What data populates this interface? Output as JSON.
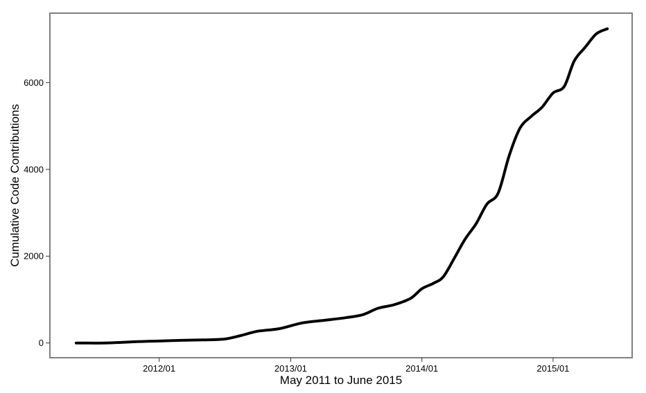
{
  "chart_data": {
    "type": "line",
    "title": "",
    "xlabel": "May 2011 to June 2015",
    "ylabel": "Cumulative Code Contributions",
    "xlim": [
      "2011-03-03",
      "2015-08-09"
    ],
    "ylim": [
      -340,
      7600
    ],
    "x_ticks": [
      {
        "date": "2012-01-01",
        "label": "2012/01"
      },
      {
        "date": "2013-01-01",
        "label": "2013/01"
      },
      {
        "date": "2014-01-01",
        "label": "2014/01"
      },
      {
        "date": "2015-01-01",
        "label": "2015/01"
      }
    ],
    "y_ticks": [
      {
        "value": 0,
        "label": "0"
      },
      {
        "value": 2000,
        "label": "2000"
      },
      {
        "value": 4000,
        "label": "4000"
      },
      {
        "value": 6000,
        "label": "6000"
      }
    ],
    "grid": false,
    "legend": "none",
    "colors": {
      "line": "#000000",
      "frame": "#7f7f7f"
    },
    "series": [
      {
        "x": [
          "2011-05-15",
          "2011-08-01",
          "2011-11-01",
          "2012-01-01",
          "2012-03-01",
          "2012-05-01",
          "2012-07-01",
          "2012-08-15",
          "2012-10-01",
          "2012-12-01",
          "2013-02-01",
          "2013-04-01",
          "2013-06-01",
          "2013-07-20",
          "2013-09-01",
          "2013-10-15",
          "2013-12-01",
          "2014-01-01",
          "2014-02-01",
          "2014-03-01",
          "2014-04-01",
          "2014-05-01",
          "2014-06-01",
          "2014-07-01",
          "2014-08-01",
          "2014-09-01",
          "2014-10-01",
          "2014-11-01",
          "2014-12-01",
          "2015-01-01",
          "2015-02-01",
          "2015-03-01",
          "2015-04-01",
          "2015-05-01",
          "2015-06-01"
        ],
        "y": [
          0,
          0,
          30,
          45,
          60,
          70,
          90,
          170,
          270,
          330,
          460,
          520,
          580,
          650,
          800,
          880,
          1030,
          1250,
          1370,
          1520,
          1950,
          2390,
          2750,
          3200,
          3450,
          4320,
          4950,
          5220,
          5430,
          5760,
          5910,
          6500,
          6820,
          7120,
          7240
        ]
      }
    ]
  }
}
